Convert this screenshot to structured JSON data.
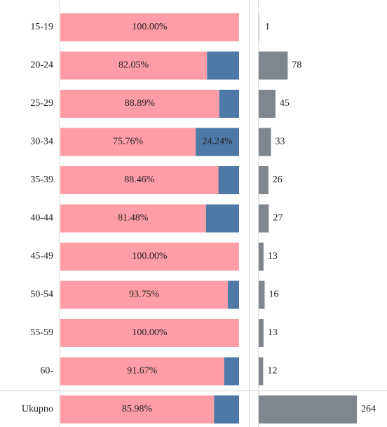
{
  "chart_data": [
    {
      "type": "stacked-bar",
      "categories": [
        "15-19",
        "20-24",
        "25-29",
        "30-34",
        "35-39",
        "40-44",
        "45-49",
        "50-54",
        "55-59",
        "60-",
        "Ukupno"
      ],
      "series": [
        {
          "color": "#ff9da7",
          "values": [
            100,
            82.05,
            88.89,
            75.76,
            88.46,
            81.48,
            100,
            93.75,
            100,
            91.67,
            85.98
          ],
          "value_labels": [
            "100.00%",
            "82.05%",
            "88.89%",
            "75.76%",
            "88.46%",
            "81.48%",
            "100.00%",
            "93.75%",
            "100.00%",
            "91.67%",
            "85.98%"
          ]
        },
        {
          "color": "#4e79a7",
          "values": [
            0,
            17.95,
            11.11,
            24.24,
            11.54,
            18.52,
            0,
            6.25,
            0,
            8.33,
            14.02
          ],
          "value_labels": [
            null,
            null,
            null,
            "24.24%",
            null,
            null,
            null,
            null,
            null,
            null,
            null
          ]
        }
      ],
      "xlim": [
        0,
        100
      ]
    },
    {
      "type": "bar",
      "values": [
        1,
        78,
        45,
        33,
        26,
        27,
        13,
        16,
        13,
        12,
        264
      ],
      "color": "#7f868e",
      "xlim": [
        0,
        345
      ]
    }
  ]
}
